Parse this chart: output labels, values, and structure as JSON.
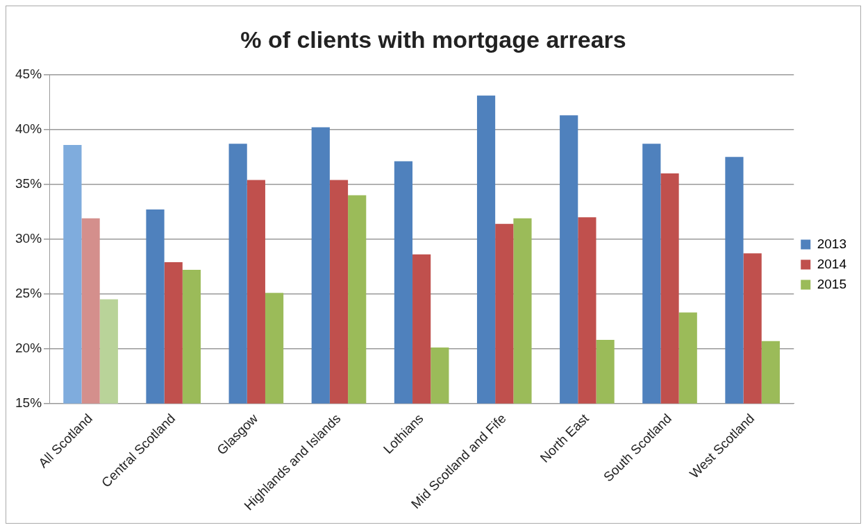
{
  "chart_data": {
    "type": "bar",
    "title": "% of clients with mortgage arrears",
    "categories": [
      "All Scotland",
      "Central Scotland",
      "Glasgow",
      "Highlands and Islands",
      "Lothians",
      "Mid Scotland and Fife",
      "North East",
      "South Scotland",
      "West Scotland"
    ],
    "series": [
      {
        "name": "2013",
        "color": "#4f81bd",
        "colors": [
          "#7facdd",
          "#4f81bd",
          "#4f81bd",
          "#4f81bd",
          "#4f81bd",
          "#4f81bd",
          "#4f81bd",
          "#4f81bd",
          "#4f81bd"
        ],
        "values": [
          38.6,
          32.7,
          38.7,
          40.2,
          37.1,
          43.1,
          41.3,
          38.7,
          37.5
        ]
      },
      {
        "name": "2014",
        "color": "#c0504d",
        "colors": [
          "#d48f8c",
          "#c0504d",
          "#c0504d",
          "#c0504d",
          "#c0504d",
          "#c0504d",
          "#c0504d",
          "#c0504d",
          "#c0504d"
        ],
        "values": [
          31.9,
          27.9,
          35.4,
          35.4,
          28.6,
          31.4,
          32.0,
          36.0,
          28.7
        ]
      },
      {
        "name": "2015",
        "color": "#9bbb59",
        "colors": [
          "#b9d399",
          "#9bbb59",
          "#9bbb59",
          "#9bbb59",
          "#9bbb59",
          "#9bbb59",
          "#9bbb59",
          "#9bbb59",
          "#9bbb59"
        ],
        "values": [
          24.5,
          27.2,
          25.1,
          34.0,
          20.1,
          31.9,
          20.8,
          23.3,
          20.7
        ]
      }
    ],
    "ylim": [
      15,
      45
    ],
    "yticks": [
      {
        "value": 15,
        "label": "15%"
      },
      {
        "value": 20,
        "label": "20%"
      },
      {
        "value": 25,
        "label": "25%"
      },
      {
        "value": 30,
        "label": "30%"
      },
      {
        "value": 35,
        "label": "35%"
      },
      {
        "value": 40,
        "label": "40%"
      },
      {
        "value": 45,
        "label": "45%"
      }
    ],
    "grid": "y",
    "legend": "right"
  }
}
